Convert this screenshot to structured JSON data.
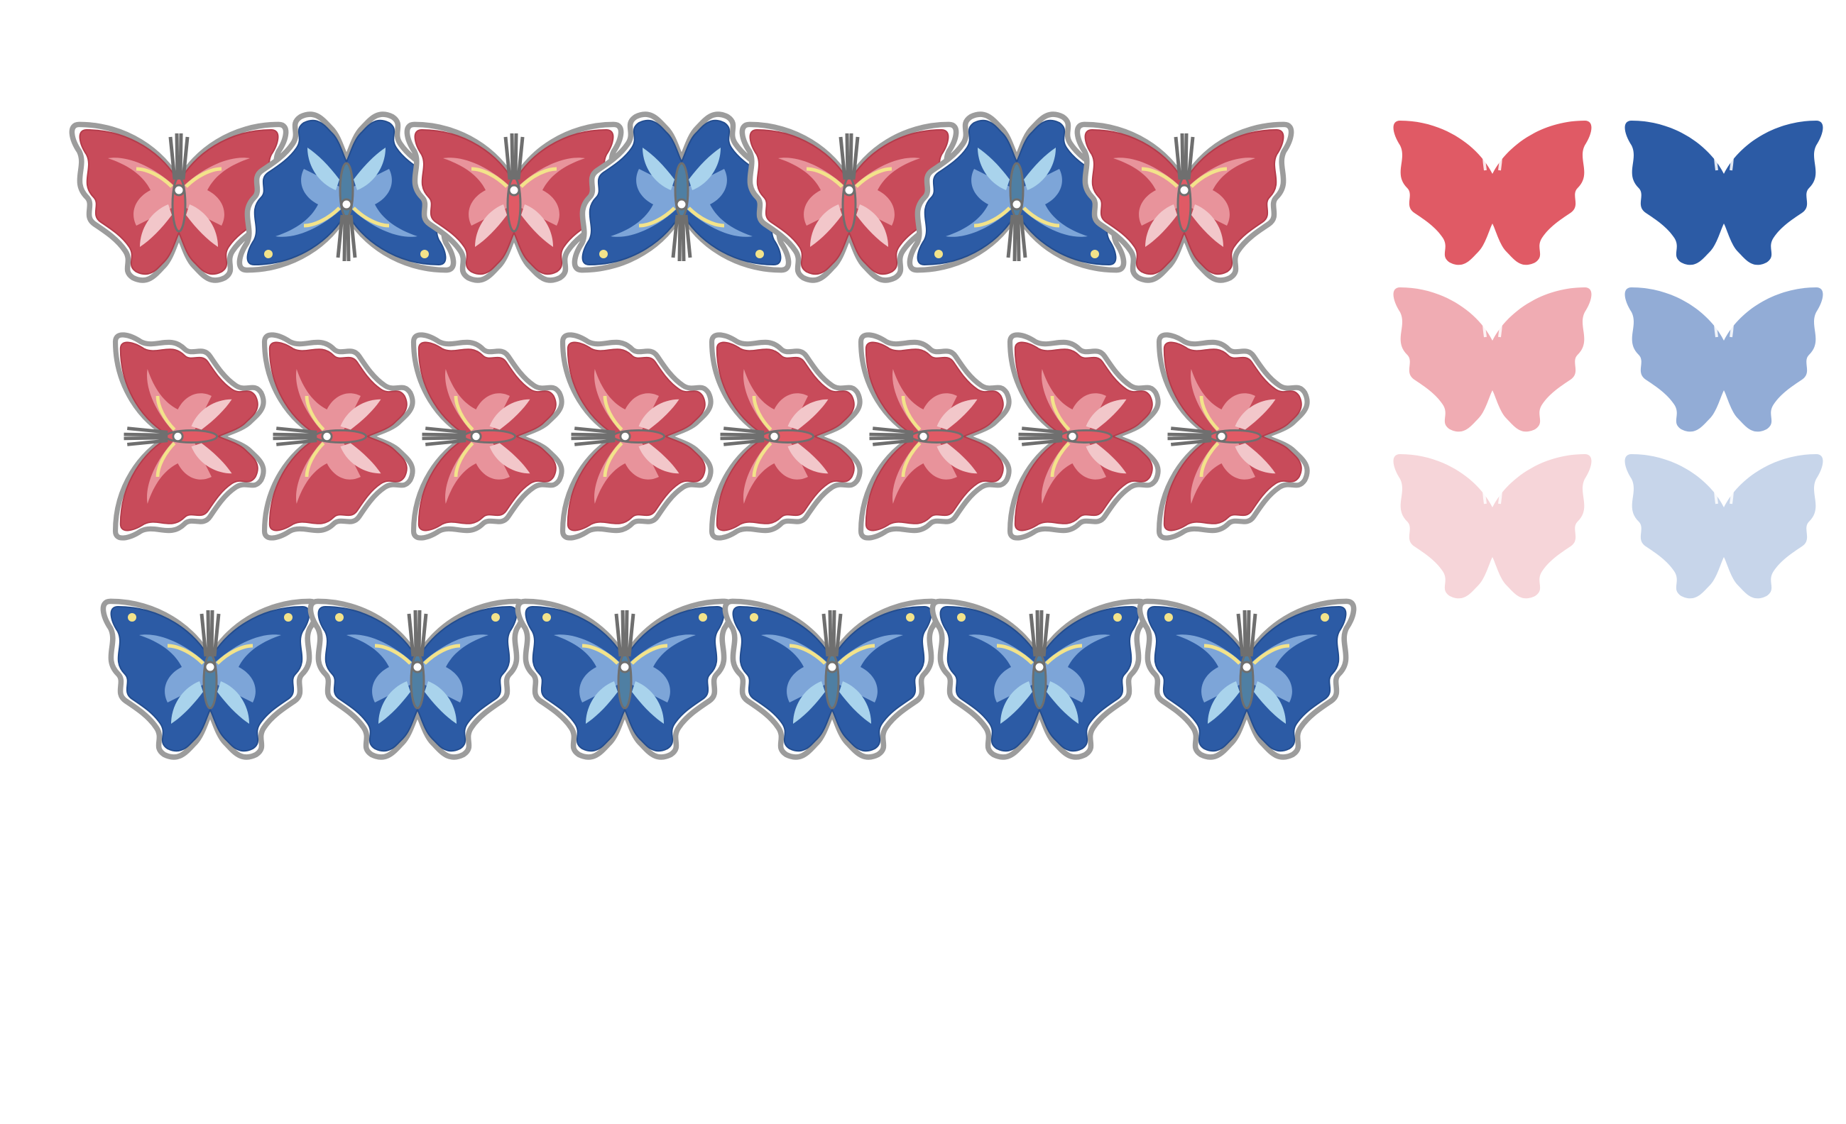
{
  "palette": {
    "red": "#c84b5a",
    "red_deep": "#b43c4b",
    "pink": "#f2c7ca",
    "blue": "#2c5ba5",
    "blue_light": "#a9d3ec",
    "pale_yellow": "#f3e38a",
    "outline_gray": "#9c9c9c",
    "body_gray": "#6f6f6f"
  },
  "rows": [
    {
      "id": "row-1",
      "pattern": [
        "red-up",
        "blue-down",
        "red-up",
        "blue-down",
        "red-up",
        "blue-down",
        "red-up"
      ]
    },
    {
      "id": "row-2",
      "pattern": [
        "red-left",
        "red-left",
        "red-left",
        "red-left",
        "red-left",
        "red-left",
        "red-left",
        "red-left"
      ]
    },
    {
      "id": "row-3",
      "pattern": [
        "blue-up",
        "blue-up",
        "blue-up",
        "blue-up",
        "blue-up",
        "blue-up"
      ]
    }
  ],
  "swatches": {
    "red_column": [
      "#e05a65",
      "#f0acb3",
      "#f6d5d9"
    ],
    "blue_column": [
      "#2c5ba5",
      "#92acd6",
      "#c7d5ea"
    ]
  },
  "icons": {
    "patterned": "butterfly-icon",
    "silhouette": "butterfly-silhouette-icon"
  }
}
